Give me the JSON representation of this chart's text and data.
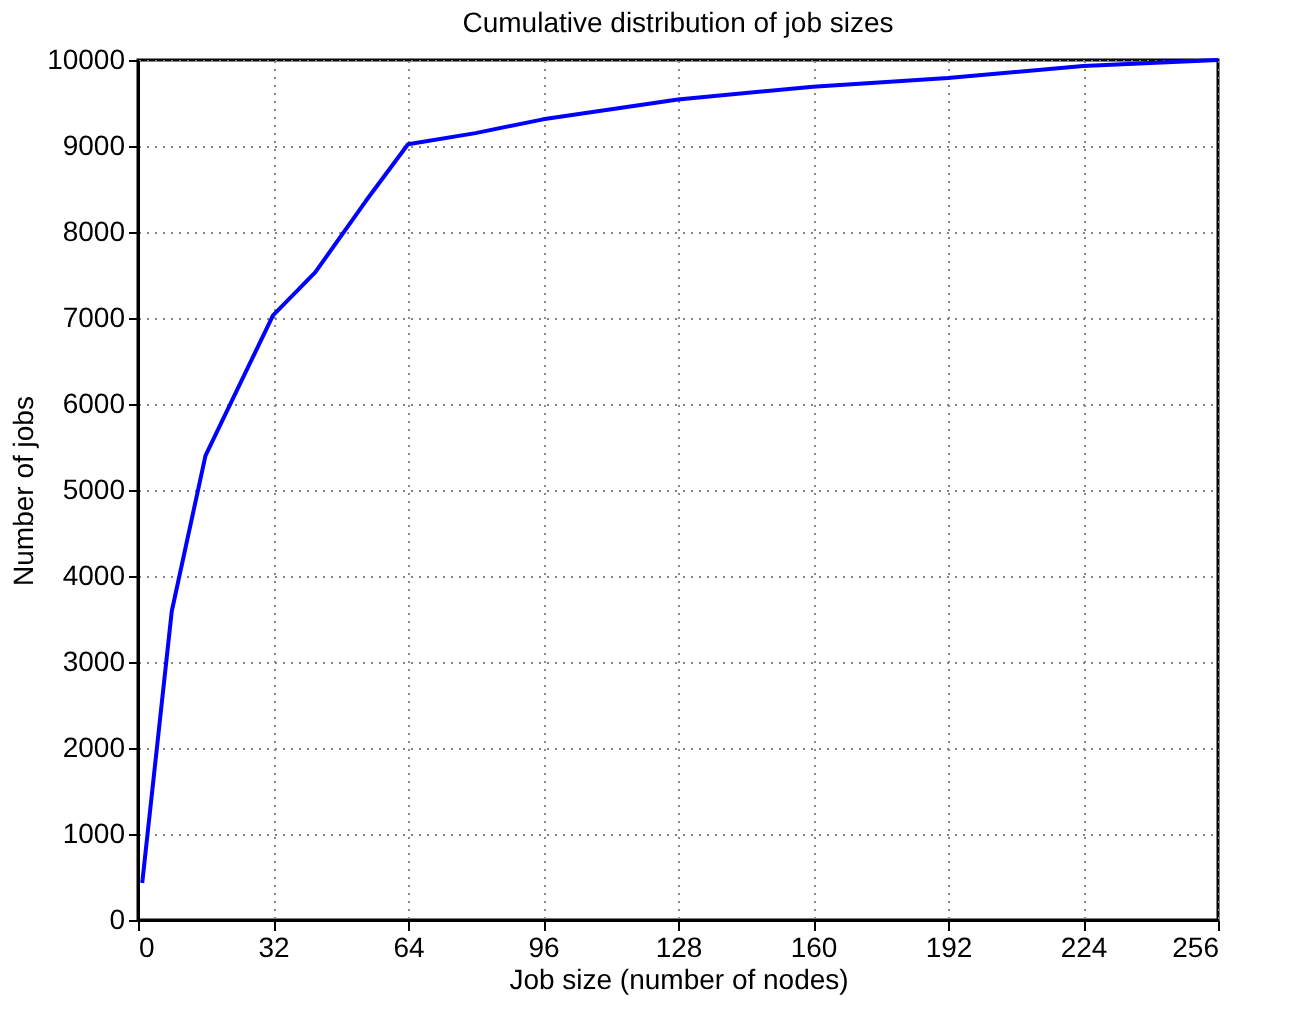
{
  "chart_data": {
    "type": "line",
    "title": "Cumulative distribution of job sizes",
    "xlabel": "Job size (number of nodes)",
    "ylabel": "Number of jobs",
    "x": [
      1,
      8,
      16,
      32,
      42,
      54,
      64,
      80,
      96,
      128,
      160,
      192,
      224,
      256
    ],
    "series": [
      {
        "color": "#0000ff",
        "values": [
          430,
          3590,
          5400,
          7030,
          7530,
          8360,
          9020,
          9150,
          9310,
          9540,
          9690,
          9790,
          9930,
          10000
        ]
      }
    ],
    "xlim": [
      0,
      256
    ],
    "xticks": [
      0,
      32,
      64,
      96,
      128,
      160,
      192,
      224,
      256
    ],
    "ylim": [
      0,
      10000
    ],
    "yticks": [
      0,
      1000,
      2000,
      3000,
      4000,
      5000,
      6000,
      7000,
      8000,
      9000,
      10000
    ],
    "grid": true,
    "marker": "none",
    "line_style": "solid"
  }
}
